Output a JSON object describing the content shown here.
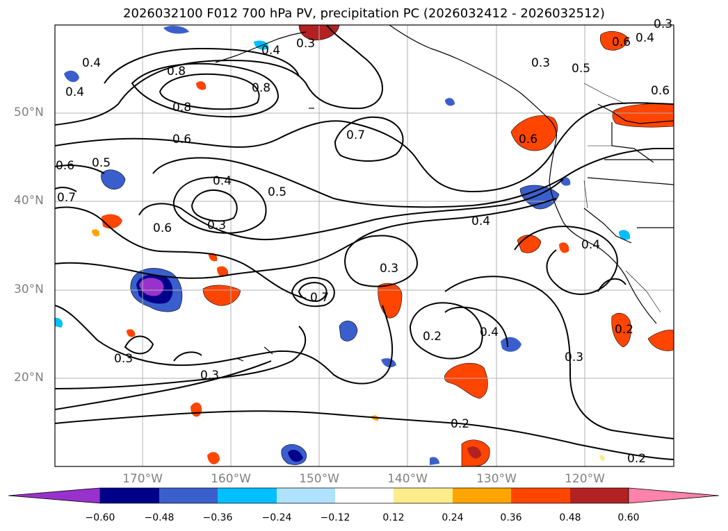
{
  "title": "2026032100 F012 700 hPa PV, precipitation PC (2026032412 - 2026032512)",
  "lat_labels": [
    "50°N",
    "40°N",
    "30°N",
    "20°N"
  ],
  "lon_labels": [
    "170°W",
    "160°W",
    "150°W",
    "140°W",
    "130°W",
    "120°W"
  ],
  "colorbar": {
    "ticks": [
      "−0.60",
      "−0.48",
      "−0.36",
      "−0.24",
      "−0.12",
      "0.12",
      "0.24",
      "0.36",
      "0.48",
      "0.60"
    ],
    "colors": [
      "#9932cc",
      "#00008b",
      "#3a5fcd",
      "#00bfff",
      "#b0e2ff",
      "#ffffff",
      "#ffec8b",
      "#ffa500",
      "#ff4500",
      "#b22222",
      "#ff82ab"
    ]
  },
  "contour_labels": [
    "0.4",
    "0.3",
    "0.4",
    "0.5",
    "0.4",
    "0.6",
    "0.8",
    "0.8",
    "0.8",
    "0.3",
    "0.4",
    "0.6",
    "0.7",
    "0.6",
    "0.5",
    "0.7",
    "0.6",
    "0.4",
    "0.5",
    "0.3",
    "0.6",
    "0.4",
    "0.4",
    "0.3",
    "0.6",
    "0.7",
    "0.3",
    "0.3",
    "0.3",
    "0.2",
    "0.4",
    "0.3",
    "0.2",
    "0.2",
    "0.2"
  ]
}
